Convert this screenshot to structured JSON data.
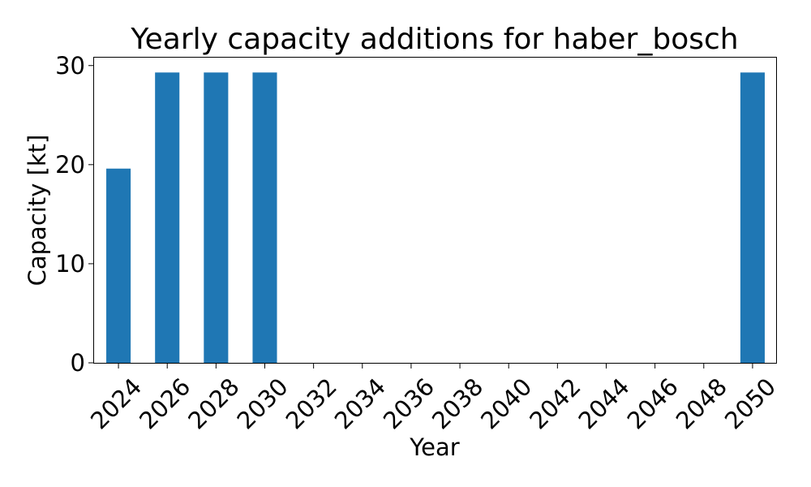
{
  "chart_data": {
    "type": "bar",
    "title": "Yearly capacity additions for haber_bosch",
    "xlabel": "Year",
    "ylabel": "Capacity [kt]",
    "categories": [
      "2024",
      "2026",
      "2028",
      "2030",
      "2032",
      "2034",
      "2036",
      "2038",
      "2040",
      "2042",
      "2044",
      "2046",
      "2048",
      "2050"
    ],
    "values": [
      19.6,
      29.3,
      29.3,
      29.3,
      0,
      0,
      0,
      0,
      0,
      0,
      0,
      0,
      0,
      29.3
    ],
    "ylim": [
      0,
      30.8
    ],
    "yticks": [
      0,
      10,
      20,
      30
    ],
    "grid": false,
    "legend": "none",
    "bar_color": "#1f77b4"
  }
}
